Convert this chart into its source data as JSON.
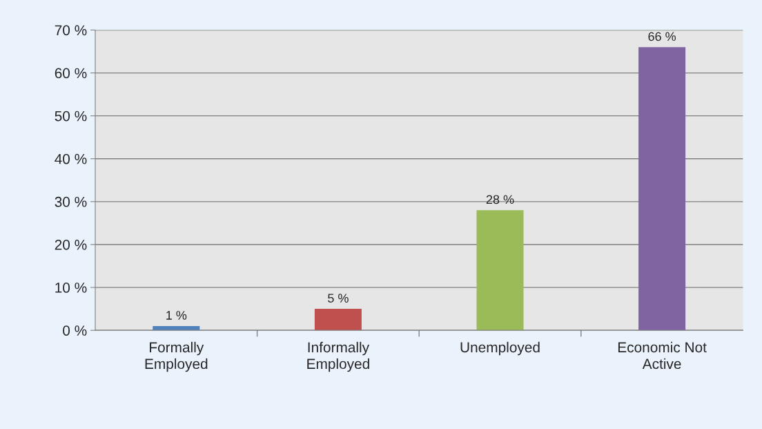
{
  "chart_data": {
    "type": "bar",
    "categories": [
      "Formally\nEmployed",
      "Informally\nEmployed",
      "Unemployed",
      "Economic Not\nActive"
    ],
    "values": [
      1,
      5,
      28,
      66
    ],
    "colors": [
      "#4f81bd",
      "#c0504d",
      "#9bbb59",
      "#8064a2"
    ],
    "value_labels": [
      "1 %",
      "5 %",
      "28 %",
      "66 %"
    ],
    "ylim": [
      0,
      70
    ],
    "yticks": [
      {
        "value": 0,
        "label": "0 %"
      },
      {
        "value": 10,
        "label": "10 %"
      },
      {
        "value": 20,
        "label": "20 %"
      },
      {
        "value": 30,
        "label": "30 %"
      },
      {
        "value": 40,
        "label": "40 %"
      },
      {
        "value": 50,
        "label": "50 %"
      },
      {
        "value": 60,
        "label": "60 %"
      },
      {
        "value": 70,
        "label": "70 %"
      }
    ],
    "grid": "y"
  }
}
